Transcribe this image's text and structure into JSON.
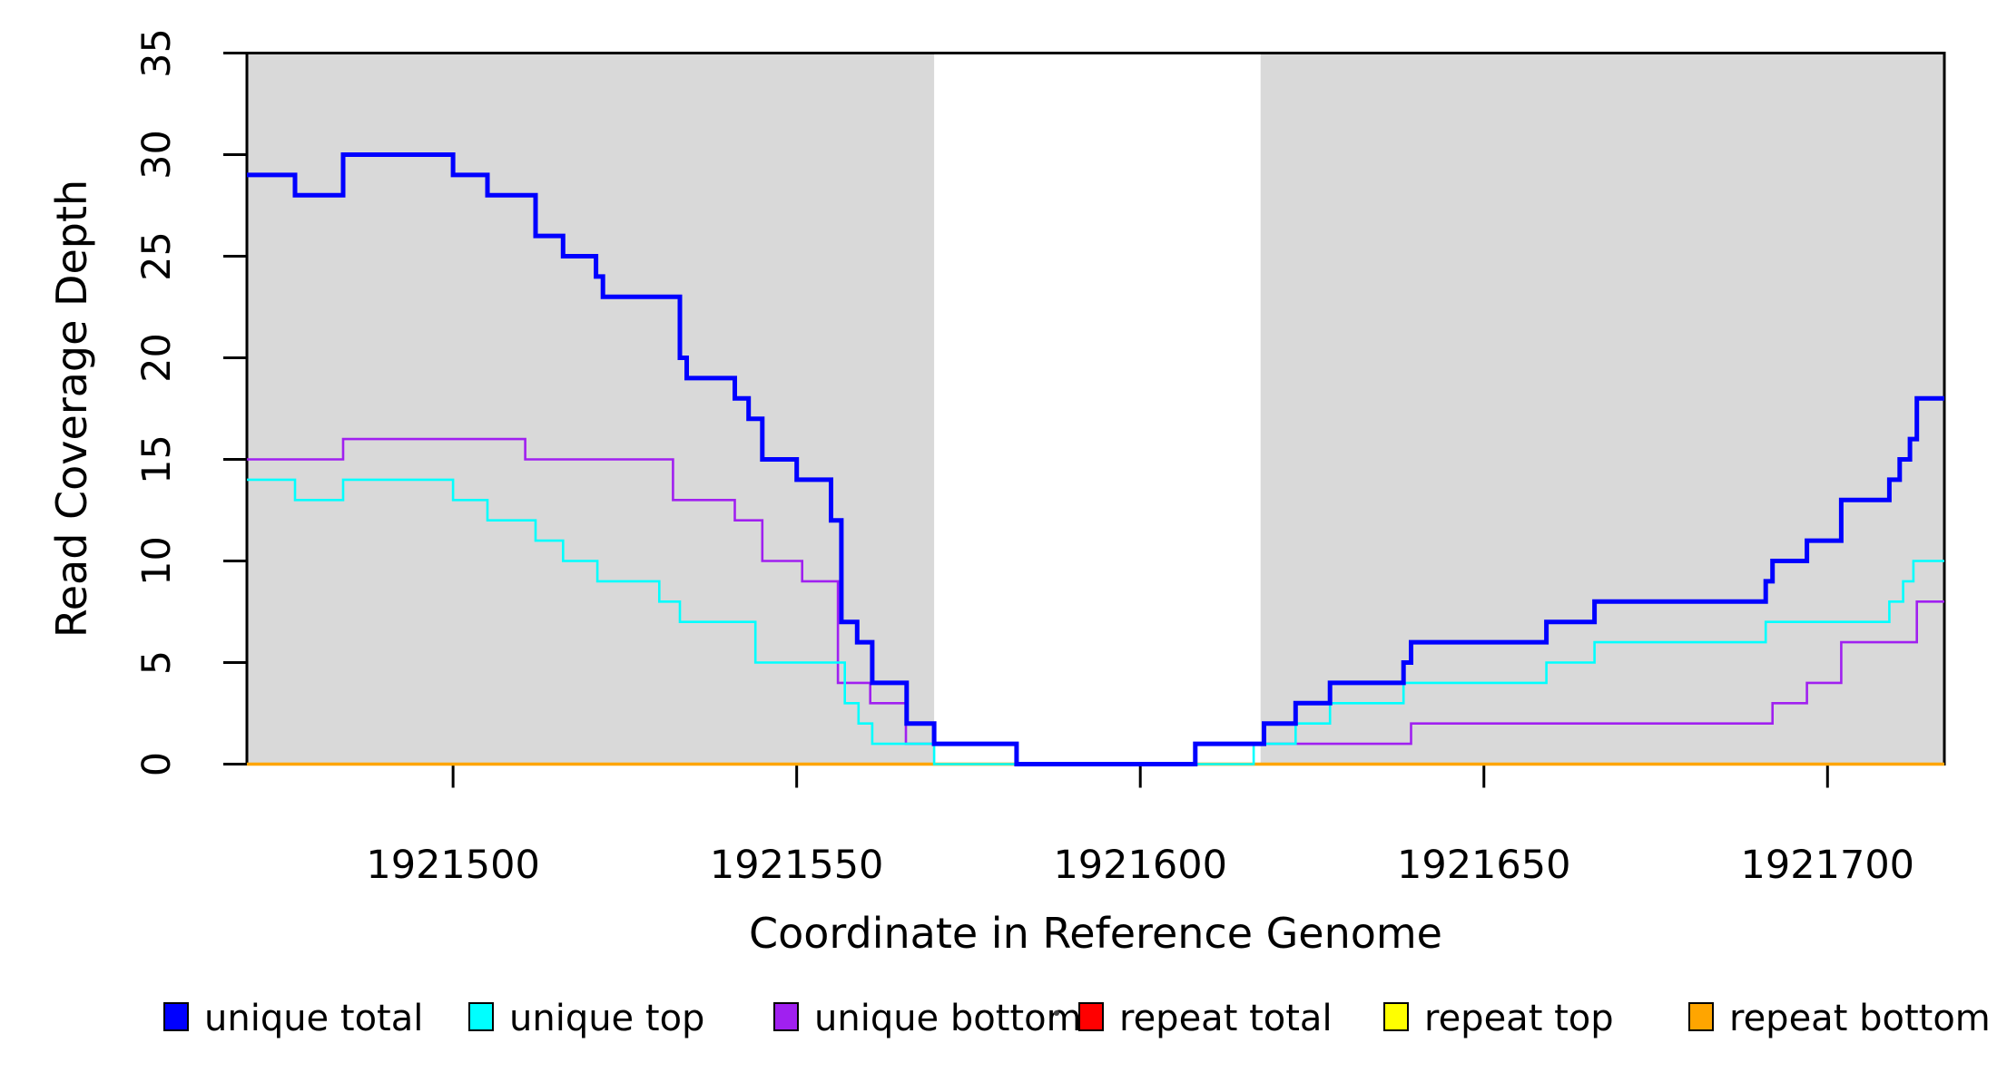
{
  "figure": {
    "x_axis_title": "Coordinate in Reference Genome",
    "y_axis_title": "Read Coverage Depth"
  },
  "chart_data": {
    "type": "line",
    "subtype": "step",
    "title": "",
    "xlabel": "Coordinate in Reference Genome",
    "ylabel": "Read Coverage Depth",
    "xlim": [
      1921470,
      1921717
    ],
    "ylim": [
      0,
      35
    ],
    "x_ticks": [
      1921500,
      1921550,
      1921600,
      1921650,
      1921700
    ],
    "y_ticks": [
      0,
      5,
      10,
      15,
      20,
      25,
      30,
      35
    ],
    "grid": false,
    "background_color": "#ffffff",
    "shade_color": "#d9d9d9",
    "shaded_regions": [
      {
        "x0": 1921470,
        "x1": 1921570
      },
      {
        "x0": 1921617.5,
        "x1": 1921717
      }
    ],
    "series": [
      {
        "name": "unique total",
        "color": "#0000ff",
        "width": 5,
        "z": 6,
        "end": 1921717,
        "points": [
          [
            1921470,
            29
          ],
          [
            1921477,
            28
          ],
          [
            1921484,
            30
          ],
          [
            1921500,
            29
          ],
          [
            1921505,
            28
          ],
          [
            1921512,
            26
          ],
          [
            1921516,
            25
          ],
          [
            1921520.8,
            24
          ],
          [
            1921521.8,
            23
          ],
          [
            1921533,
            20
          ],
          [
            1921534,
            19
          ],
          [
            1921541,
            18
          ],
          [
            1921543,
            17
          ],
          [
            1921545,
            15
          ],
          [
            1921550,
            14
          ],
          [
            1921555,
            12
          ],
          [
            1921556.5,
            7
          ],
          [
            1921558.8,
            6
          ],
          [
            1921561,
            4
          ],
          [
            1921566,
            2
          ],
          [
            1921570,
            1
          ],
          [
            1921582,
            0
          ],
          [
            1921608,
            1
          ],
          [
            1921618,
            2
          ],
          [
            1921622.6,
            3
          ],
          [
            1921627.6,
            4
          ],
          [
            1921638.3,
            5
          ],
          [
            1921639.4,
            6
          ],
          [
            1921659.1,
            7
          ],
          [
            1921666.1,
            8
          ],
          [
            1921691,
            9
          ],
          [
            1921692,
            10
          ],
          [
            1921697,
            11
          ],
          [
            1921702,
            13
          ],
          [
            1921709,
            14
          ],
          [
            1921710.5,
            15
          ],
          [
            1921712,
            16
          ],
          [
            1921713,
            18
          ]
        ]
      },
      {
        "name": "unique top",
        "color": "#00ffff",
        "width": 2.6,
        "z": 5,
        "end": 1921717,
        "points": [
          [
            1921470,
            14
          ],
          [
            1921477,
            13
          ],
          [
            1921484,
            14
          ],
          [
            1921500,
            13
          ],
          [
            1921505,
            12
          ],
          [
            1921512,
            11
          ],
          [
            1921516,
            10
          ],
          [
            1921521,
            9
          ],
          [
            1921530,
            8
          ],
          [
            1921533,
            7
          ],
          [
            1921544,
            5
          ],
          [
            1921557,
            3
          ],
          [
            1921559,
            2
          ],
          [
            1921561,
            1
          ],
          [
            1921570,
            0
          ],
          [
            1921616.5,
            1
          ],
          [
            1921622.6,
            2
          ],
          [
            1921627.6,
            3
          ],
          [
            1921638.3,
            4
          ],
          [
            1921659.1,
            5
          ],
          [
            1921666.1,
            6
          ],
          [
            1921691,
            7
          ],
          [
            1921709,
            8
          ],
          [
            1921711,
            9
          ],
          [
            1921712.5,
            10
          ]
        ]
      },
      {
        "name": "unique bottom",
        "color": "#a020f0",
        "width": 2.6,
        "z": 4,
        "end": 1921717,
        "points": [
          [
            1921470,
            15
          ],
          [
            1921484,
            16
          ],
          [
            1921510.5,
            15
          ],
          [
            1921532,
            13
          ],
          [
            1921541,
            12
          ],
          [
            1921545,
            10
          ],
          [
            1921550.8,
            9
          ],
          [
            1921556,
            4
          ],
          [
            1921560.7,
            3
          ],
          [
            1921565.9,
            1
          ],
          [
            1921582,
            0
          ],
          [
            1921608,
            1
          ],
          [
            1921639.4,
            2
          ],
          [
            1921692,
            3
          ],
          [
            1921697,
            4
          ],
          [
            1921702,
            6
          ],
          [
            1921713,
            8
          ]
        ]
      },
      {
        "name": "repeat total",
        "color": "#ff0000",
        "width": 2.6,
        "z": 1,
        "end": 1921717,
        "points": [
          [
            1921470,
            0
          ]
        ]
      },
      {
        "name": "repeat top",
        "color": "#ffff00",
        "width": 2.6,
        "z": 2,
        "end": 1921717,
        "points": [
          [
            1921470,
            0
          ]
        ]
      },
      {
        "name": "repeat bottom",
        "color": "#ffa500",
        "width": 3.5,
        "z": 3,
        "end": 1921717,
        "points": [
          [
            1921470,
            0
          ]
        ]
      }
    ],
    "legend_position": "bottom"
  },
  "legend": {
    "items": [
      {
        "label": "unique total",
        "color": "#0000ff"
      },
      {
        "label": "unique top",
        "color": "#00ffff"
      },
      {
        "label": "unique bottom",
        "color": "#a020f0"
      },
      {
        "label": "repeat total",
        "color": "#ff0000"
      },
      {
        "label": "repeat top",
        "color": "#ffff00"
      },
      {
        "label": "repeat bottom",
        "color": "#ffa500"
      }
    ],
    "stray_dot": "·"
  }
}
